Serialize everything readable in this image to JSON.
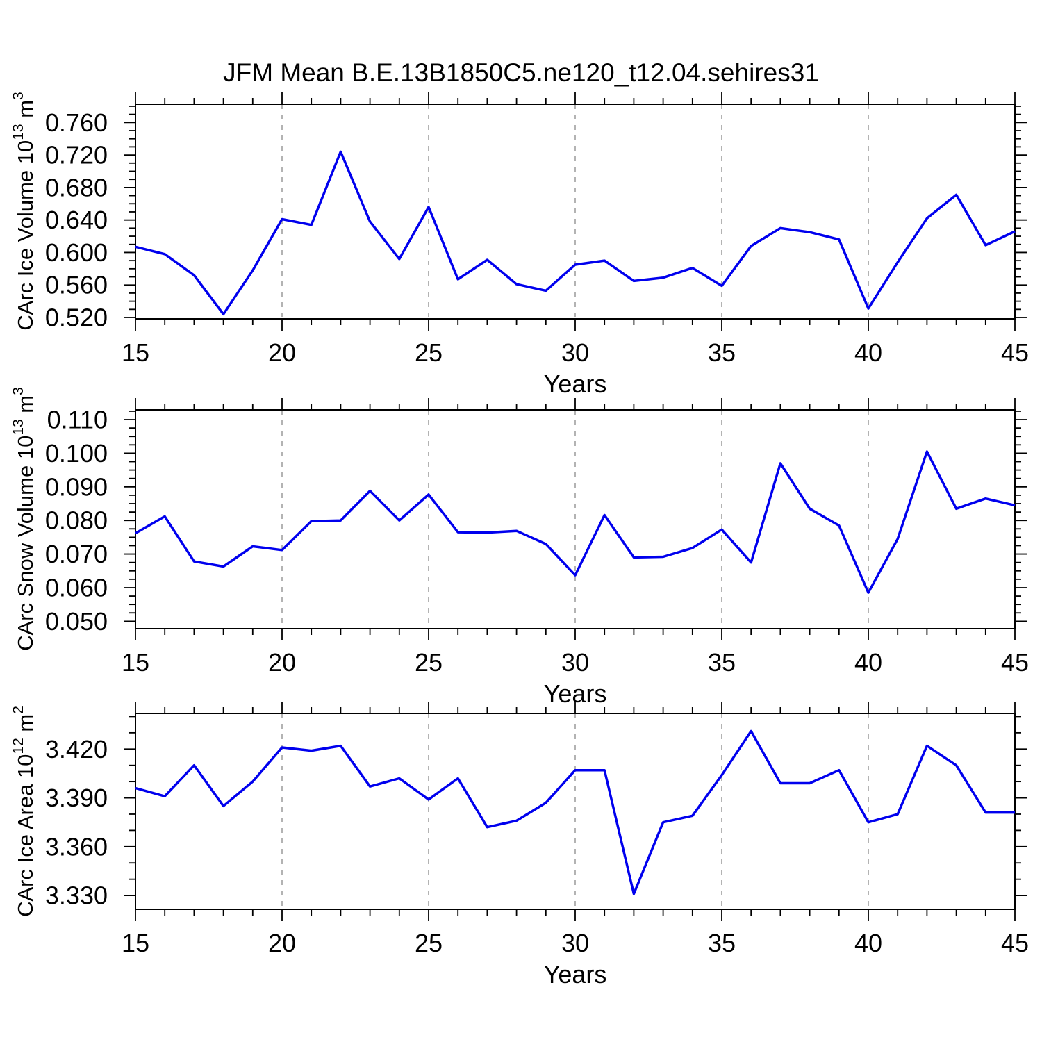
{
  "title": "JFM Mean B.E.13B1850C5.ne120_t12.04.sehires31",
  "colors": {
    "line": "#0000EE",
    "grid": "#9a9a9a",
    "frame": "#000000"
  },
  "chart_data": [
    {
      "type": "line",
      "name": "carc-ice-volume",
      "ylabel_parts": {
        "prefix": "CArc Ice Volume 10",
        "exp": "13",
        "unit": " m",
        "unit_exp": "3"
      },
      "xlabel": "Years",
      "x": [
        15,
        16,
        17,
        18,
        19,
        20,
        21,
        22,
        23,
        24,
        25,
        26,
        27,
        28,
        29,
        30,
        31,
        32,
        33,
        34,
        35,
        36,
        37,
        38,
        39,
        40,
        41,
        42,
        43,
        44,
        45
      ],
      "values": [
        0.607,
        0.598,
        0.572,
        0.524,
        0.578,
        0.641,
        0.634,
        0.724,
        0.638,
        0.592,
        0.656,
        0.567,
        0.591,
        0.561,
        0.553,
        0.585,
        0.59,
        0.565,
        0.569,
        0.581,
        0.559,
        0.608,
        0.63,
        0.625,
        0.616,
        0.531,
        0.588,
        0.642,
        0.671,
        0.609,
        0.626
      ],
      "xlim": [
        15,
        45
      ],
      "ylim": [
        0.5183,
        0.7825
      ],
      "xticks": [
        15,
        20,
        25,
        30,
        35,
        40,
        45
      ],
      "yticks": [
        0.52,
        0.56,
        0.6,
        0.64,
        0.68,
        0.72,
        0.76
      ],
      "yminor": 0.01,
      "grid_x": [
        20,
        25,
        30,
        35,
        40
      ],
      "ytick_decimals": 3
    },
    {
      "type": "line",
      "name": "carc-snow-volume",
      "ylabel_parts": {
        "prefix": "CArc Snow Volume 10",
        "exp": "13",
        "unit": " m",
        "unit_exp": "3"
      },
      "xlabel": "Years",
      "x": [
        15,
        16,
        17,
        18,
        19,
        20,
        21,
        22,
        23,
        24,
        25,
        26,
        27,
        28,
        29,
        30,
        31,
        32,
        33,
        34,
        35,
        36,
        37,
        38,
        39,
        40,
        41,
        42,
        43,
        44,
        45
      ],
      "values": [
        0.0762,
        0.0812,
        0.0678,
        0.0663,
        0.0723,
        0.0712,
        0.0798,
        0.08,
        0.0888,
        0.08,
        0.0877,
        0.0765,
        0.0764,
        0.0769,
        0.073,
        0.0637,
        0.0816,
        0.069,
        0.0692,
        0.0718,
        0.0773,
        0.0675,
        0.097,
        0.0835,
        0.0785,
        0.0585,
        0.0745,
        0.1005,
        0.0835,
        0.0865,
        0.0845
      ],
      "xlim": [
        15,
        45
      ],
      "ylim": [
        0.0478,
        0.1129
      ],
      "xticks": [
        15,
        20,
        25,
        30,
        35,
        40,
        45
      ],
      "yticks": [
        0.05,
        0.06,
        0.07,
        0.08,
        0.09,
        0.1,
        0.11
      ],
      "yminor": 0.0025,
      "grid_x": [
        20,
        25,
        30,
        35,
        40
      ],
      "ytick_decimals": 3
    },
    {
      "type": "line",
      "name": "carc-ice-area",
      "ylabel_parts": {
        "prefix": "CArc Ice Area 10",
        "exp": "12",
        "unit": " m",
        "unit_exp": "2"
      },
      "xlabel": "Years",
      "x": [
        15,
        16,
        17,
        18,
        19,
        20,
        21,
        22,
        23,
        24,
        25,
        26,
        27,
        28,
        29,
        30,
        31,
        32,
        33,
        34,
        35,
        36,
        37,
        38,
        39,
        40,
        41,
        42,
        43,
        44,
        45
      ],
      "values": [
        3.396,
        3.391,
        3.41,
        3.385,
        3.4,
        3.421,
        3.419,
        3.422,
        3.397,
        3.402,
        3.389,
        3.402,
        3.372,
        3.376,
        3.387,
        3.407,
        3.407,
        3.331,
        3.375,
        3.379,
        3.404,
        3.431,
        3.399,
        3.399,
        3.407,
        3.375,
        3.38,
        3.422,
        3.41,
        3.381,
        3.381
      ],
      "xlim": [
        15,
        45
      ],
      "ylim": [
        3.3215,
        3.4419
      ],
      "xticks": [
        15,
        20,
        25,
        30,
        35,
        40,
        45
      ],
      "yticks": [
        3.33,
        3.36,
        3.39,
        3.42
      ],
      "yminor": 0.01,
      "grid_x": [
        20,
        25,
        30,
        35,
        40
      ],
      "ytick_decimals": 3
    }
  ]
}
